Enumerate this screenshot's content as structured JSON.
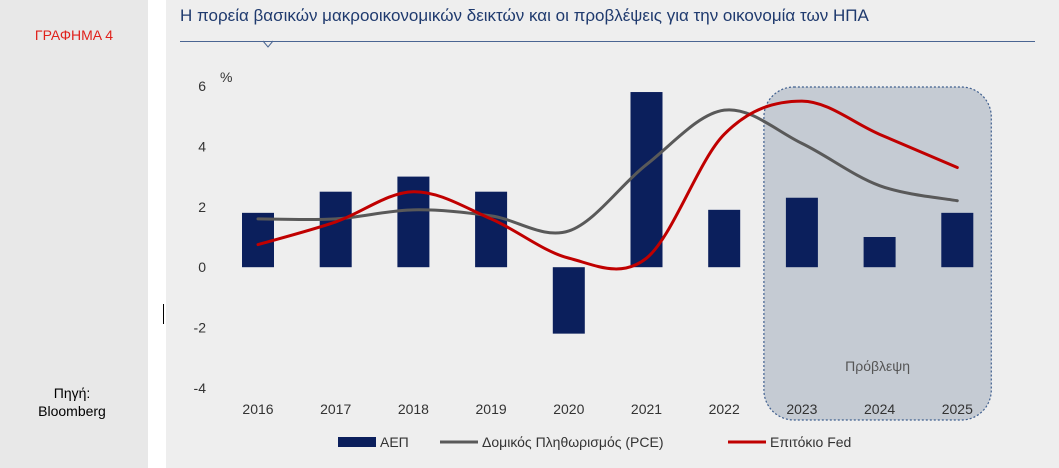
{
  "sidebar": {
    "figure_label": "ΓΡΑΦΗΜΑ 4",
    "source_line1": "Πηγή:",
    "source_line2": "Bloomberg"
  },
  "colors": {
    "gdp": "#0b1f5c",
    "pce": "#595959",
    "fed": "#c00000",
    "forecast_fill": "#c5cbd3",
    "forecast_border": "#3f5f8f",
    "title": "#1f3a6e"
  },
  "chart_data": {
    "type": "bar",
    "title": "Η πορεία βασικών μακροοικονομικών δεικτών και οι προβλέψεις για την οικονομία των ΗΠΑ",
    "ylabel": "%",
    "ylim": [
      -4,
      6
    ],
    "yticks": [
      6,
      4,
      2,
      0,
      -2,
      -4
    ],
    "categories": [
      "2016",
      "2017",
      "2018",
      "2019",
      "2020",
      "2021",
      "2022",
      "2023",
      "2024",
      "2025"
    ],
    "series": [
      {
        "name": "ΑΕΠ",
        "type": "bar",
        "values": [
          1.8,
          2.5,
          3.0,
          2.5,
          -2.2,
          5.8,
          1.9,
          2.3,
          1.0,
          1.8
        ]
      },
      {
        "name": "Δομικός Πληθωρισμός (PCE)",
        "type": "line",
        "values": [
          1.6,
          1.6,
          1.9,
          1.7,
          1.2,
          3.4,
          5.2,
          4.1,
          2.7,
          2.2
        ]
      },
      {
        "name": "Επιτόκιο Fed",
        "type": "line",
        "values": [
          0.75,
          1.5,
          2.5,
          1.6,
          0.3,
          0.3,
          4.4,
          5.5,
          4.4,
          3.3
        ]
      }
    ],
    "forecast": {
      "label": "Πρόβλεψη",
      "from": "2023",
      "to": "2025"
    },
    "grid": false,
    "legend_position": "bottom"
  }
}
